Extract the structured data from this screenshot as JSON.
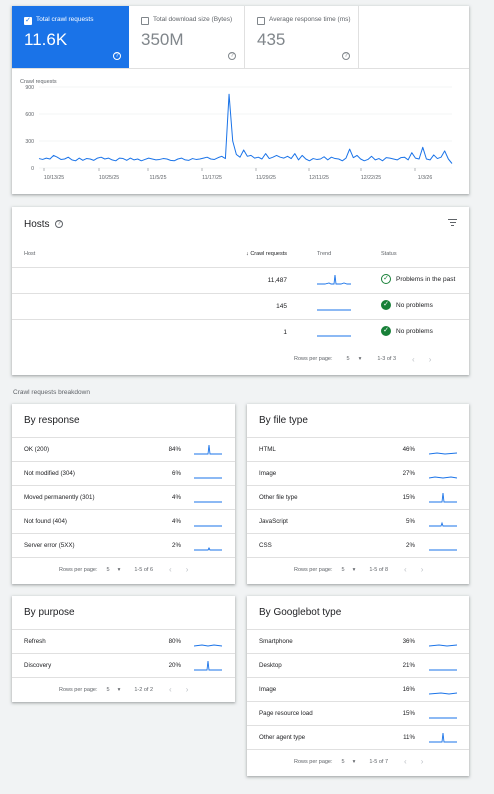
{
  "metrics": [
    {
      "label": "Total crawl requests",
      "value": "11.6K",
      "checked": true
    },
    {
      "label": "Total download size (Bytes)",
      "value": "350M",
      "checked": false
    },
    {
      "label": "Average response time (ms)",
      "value": "435",
      "checked": false
    }
  ],
  "chart_data": {
    "type": "line",
    "title": "",
    "ylabel": "Crawl requests",
    "ylim": [
      0,
      900
    ],
    "yticks": [
      "900",
      "600",
      "300",
      "0"
    ],
    "xticks": [
      "10/13/25",
      "10/25/25",
      "11/5/25",
      "11/17/25",
      "11/29/25",
      "12/11/25",
      "12/22/25",
      "1/3/26"
    ],
    "series": [
      {
        "color": "#1a73e8",
        "values": [
          105,
          95,
          110,
          100,
          140,
          120,
          95,
          100,
          120,
          90,
          80,
          110,
          85,
          105,
          100,
          85,
          110,
          120,
          100,
          110,
          90,
          80,
          110,
          105,
          85,
          110,
          90,
          100,
          80,
          95,
          110,
          100,
          90,
          95,
          105,
          100,
          85,
          80,
          100,
          110,
          90,
          85,
          105,
          95,
          100,
          110,
          120,
          100,
          95,
          115,
          130,
          105,
          820,
          300,
          150,
          120,
          200,
          130,
          140,
          110,
          120,
          100,
          160,
          105,
          120,
          140,
          120,
          110,
          130,
          105,
          160,
          90,
          140,
          100,
          80,
          105,
          95,
          100,
          125,
          90,
          120,
          105,
          100,
          80,
          110,
          210,
          115,
          140,
          100,
          80,
          95,
          130,
          90,
          105,
          80,
          115,
          110,
          100,
          90,
          115,
          120,
          90,
          170,
          110,
          100,
          230,
          100,
          90,
          145,
          105,
          120,
          190,
          100,
          50
        ]
      }
    ]
  },
  "hosts": {
    "title": "Hosts",
    "columns": {
      "host": "Host",
      "requests": "Crawl requests",
      "trend": "Trend",
      "status": "Status"
    },
    "rows": [
      {
        "requests": "11,487",
        "status": "Problems in the past",
        "status_type": "past"
      },
      {
        "requests": "145",
        "status": "No problems",
        "status_type": "ok"
      },
      {
        "requests": "1",
        "status": "No problems",
        "status_type": "ok"
      }
    ],
    "pager": {
      "label": "Rows per page:",
      "size": "5",
      "range": "1-3 of 3"
    }
  },
  "breakdown_title": "Crawl requests breakdown",
  "breakdowns": {
    "response": {
      "title": "By response",
      "rows": [
        {
          "label": "OK (200)",
          "pct": "84%"
        },
        {
          "label": "Not modified (304)",
          "pct": "6%"
        },
        {
          "label": "Moved permanently (301)",
          "pct": "4%"
        },
        {
          "label": "Not found (404)",
          "pct": "4%"
        },
        {
          "label": "Server error (5XX)",
          "pct": "2%"
        }
      ],
      "pager": {
        "label": "Rows per page:",
        "size": "5",
        "range": "1-5 of 6"
      }
    },
    "filetype": {
      "title": "By file type",
      "rows": [
        {
          "label": "HTML",
          "pct": "46%"
        },
        {
          "label": "Image",
          "pct": "27%"
        },
        {
          "label": "Other file type",
          "pct": "15%"
        },
        {
          "label": "JavaScript",
          "pct": "5%"
        },
        {
          "label": "CSS",
          "pct": "2%"
        }
      ],
      "pager": {
        "label": "Rows per page:",
        "size": "5",
        "range": "1-5 of 8"
      }
    },
    "purpose": {
      "title": "By purpose",
      "rows": [
        {
          "label": "Refresh",
          "pct": "80%"
        },
        {
          "label": "Discovery",
          "pct": "20%"
        }
      ],
      "pager": {
        "label": "Rows per page:",
        "size": "5",
        "range": "1-2 of 2"
      }
    },
    "googlebot": {
      "title": "By Googlebot type",
      "rows": [
        {
          "label": "Smartphone",
          "pct": "36%"
        },
        {
          "label": "Desktop",
          "pct": "21%"
        },
        {
          "label": "Image",
          "pct": "16%"
        },
        {
          "label": "Page resource load",
          "pct": "15%"
        },
        {
          "label": "Other agent type",
          "pct": "11%"
        }
      ],
      "pager": {
        "label": "Rows per page:",
        "size": "5",
        "range": "1-5 of 7"
      }
    }
  }
}
